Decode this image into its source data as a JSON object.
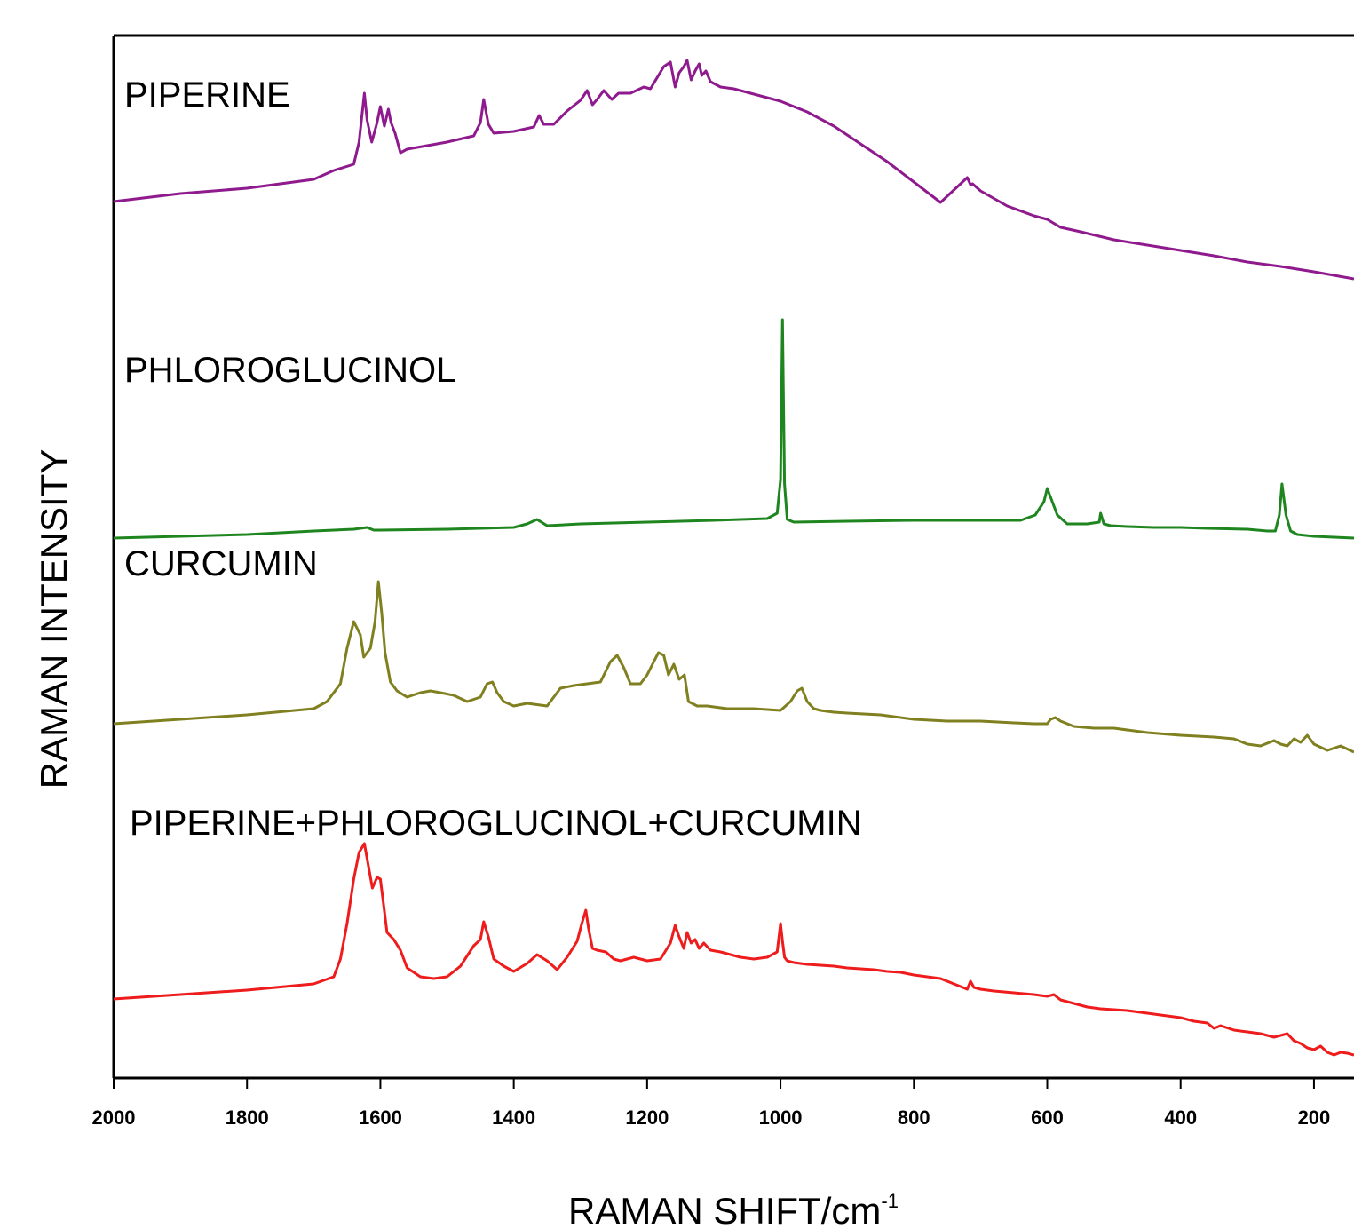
{
  "chart_data": {
    "type": "line",
    "title": "",
    "xlabel": "RAMAN SHIFT/cm",
    "xlabel_superscript": "-1",
    "ylabel": "RAMAN INTENSITY",
    "xlim": [
      2000,
      140
    ],
    "x_reversed": true,
    "y_ticks_shown": false,
    "grid": false,
    "legend": "none (series labelled inline above each trace)",
    "xticks": [
      2000,
      1800,
      1600,
      1400,
      1200,
      1000,
      800,
      600,
      400,
      200
    ],
    "xtick_labels": [
      "2000",
      "1800",
      "1600",
      "1400",
      "1200",
      "1000",
      "800",
      "600",
      "400",
      "200"
    ],
    "series": [
      {
        "name": "PIPERINE",
        "color": "#8e1a8e",
        "x": [
          2000,
          1900,
          1800,
          1700,
          1670,
          1640,
          1632,
          1624,
          1620,
          1613,
          1605,
          1600,
          1594,
          1588,
          1584,
          1578,
          1570,
          1560,
          1500,
          1460,
          1450,
          1445,
          1438,
          1430,
          1400,
          1370,
          1362,
          1355,
          1340,
          1320,
          1300,
          1290,
          1282,
          1275,
          1265,
          1253,
          1243,
          1225,
          1205,
          1195,
          1175,
          1165,
          1158,
          1152,
          1145,
          1140,
          1134,
          1128,
          1122,
          1118,
          1112,
          1105,
          1090,
          1070,
          1040,
          1000,
          960,
          920,
          880,
          840,
          800,
          760,
          720,
          715,
          712,
          700,
          660,
          620,
          600,
          580,
          550,
          500,
          450,
          400,
          350,
          300,
          250,
          200,
          140
        ],
        "y": [
          227,
          218,
          212,
          202,
          192,
          185,
          160,
          105,
          135,
          160,
          138,
          120,
          142,
          123,
          138,
          150,
          172,
          168,
          160,
          153,
          138,
          112,
          140,
          150,
          148,
          143,
          130,
          140,
          140,
          125,
          113,
          102,
          118,
          112,
          102,
          112,
          105,
          105,
          98,
          100,
          75,
          70,
          98,
          82,
          75,
          68,
          90,
          80,
          72,
          85,
          80,
          92,
          98,
          100,
          106,
          114,
          126,
          142,
          162,
          182,
          205,
          228,
          200,
          208,
          207,
          215,
          232,
          243,
          247,
          256,
          261,
          270,
          276,
          282,
          288,
          295,
          300,
          306,
          314
        ]
      },
      {
        "name": "PHLOROGLUCINOL",
        "color": "#1f861f",
        "x": [
          2000,
          1900,
          1800,
          1700,
          1640,
          1620,
          1610,
          1600,
          1500,
          1400,
          1380,
          1365,
          1350,
          1300,
          1200,
          1100,
          1020,
          1005,
          1000,
          997,
          994,
          990,
          980,
          900,
          800,
          700,
          640,
          618,
          605,
          600,
          595,
          585,
          570,
          540,
          522,
          520,
          515,
          505,
          480,
          440,
          400,
          360,
          300,
          270,
          258,
          252,
          248,
          242,
          235,
          225,
          200,
          140
        ],
        "y": [
          606,
          604,
          602,
          598,
          596,
          594,
          597,
          597,
          596,
          594,
          590,
          585,
          592,
          590,
          588,
          586,
          584,
          578,
          540,
          360,
          545,
          585,
          588,
          587,
          586,
          586,
          586,
          580,
          565,
          550,
          560,
          580,
          590,
          590,
          588,
          578,
          590,
          592,
          593,
          594,
          594,
          595,
          596,
          598,
          598,
          580,
          545,
          580,
          598,
          602,
          604,
          606
        ]
      },
      {
        "name": "CURCUMIN",
        "color": "#808020",
        "x": [
          2000,
          1900,
          1800,
          1700,
          1680,
          1660,
          1650,
          1640,
          1630,
          1625,
          1615,
          1608,
          1603,
          1598,
          1593,
          1585,
          1575,
          1560,
          1540,
          1525,
          1510,
          1490,
          1470,
          1450,
          1440,
          1432,
          1425,
          1415,
          1400,
          1380,
          1350,
          1330,
          1310,
          1290,
          1270,
          1255,
          1245,
          1235,
          1225,
          1210,
          1200,
          1190,
          1183,
          1175,
          1168,
          1160,
          1152,
          1144,
          1138,
          1125,
          1110,
          1080,
          1040,
          1000,
          985,
          975,
          968,
          960,
          950,
          940,
          920,
          900,
          850,
          800,
          750,
          700,
          650,
          620,
          600,
          595,
          588,
          580,
          560,
          530,
          500,
          450,
          400,
          350,
          320,
          300,
          280,
          260,
          250,
          240,
          230,
          220,
          210,
          200,
          180,
          160,
          140
        ],
        "y": [
          815,
          810,
          805,
          798,
          790,
          770,
          730,
          700,
          715,
          740,
          730,
          700,
          655,
          690,
          735,
          768,
          778,
          785,
          780,
          778,
          780,
          783,
          790,
          785,
          770,
          768,
          780,
          790,
          795,
          792,
          795,
          775,
          772,
          770,
          768,
          745,
          738,
          752,
          770,
          770,
          760,
          745,
          735,
          738,
          760,
          748,
          765,
          760,
          790,
          795,
          795,
          798,
          798,
          800,
          790,
          778,
          775,
          790,
          798,
          800,
          802,
          803,
          805,
          810,
          812,
          812,
          814,
          815,
          815,
          810,
          808,
          812,
          818,
          820,
          820,
          825,
          828,
          830,
          832,
          838,
          840,
          834,
          838,
          840,
          832,
          836,
          828,
          838,
          845,
          840,
          847
        ]
      },
      {
        "name": "PIPERINE+PHLOROGLUCINOL+CURCUMIN",
        "color": "#ee1c1c",
        "x": [
          2000,
          1900,
          1800,
          1700,
          1670,
          1660,
          1650,
          1640,
          1632,
          1624,
          1618,
          1612,
          1605,
          1600,
          1595,
          1590,
          1580,
          1570,
          1560,
          1540,
          1520,
          1500,
          1480,
          1460,
          1450,
          1445,
          1438,
          1430,
          1415,
          1400,
          1380,
          1365,
          1350,
          1335,
          1320,
          1305,
          1298,
          1292,
          1288,
          1282,
          1275,
          1262,
          1250,
          1240,
          1220,
          1200,
          1180,
          1165,
          1158,
          1152,
          1145,
          1140,
          1134,
          1128,
          1122,
          1115,
          1105,
          1090,
          1060,
          1040,
          1020,
          1005,
          1000,
          997,
          994,
          990,
          980,
          960,
          940,
          920,
          900,
          880,
          860,
          840,
          820,
          800,
          780,
          760,
          740,
          720,
          715,
          710,
          700,
          680,
          650,
          620,
          600,
          590,
          580,
          560,
          540,
          520,
          500,
          480,
          460,
          440,
          420,
          400,
          380,
          360,
          350,
          340,
          320,
          300,
          280,
          260,
          250,
          240,
          230,
          220,
          210,
          200,
          190,
          180,
          170,
          160,
          150,
          140
        ],
        "y": [
          1125,
          1120,
          1115,
          1108,
          1100,
          1080,
          1040,
          990,
          960,
          950,
          975,
          1000,
          988,
          990,
          1020,
          1050,
          1058,
          1070,
          1090,
          1100,
          1102,
          1100,
          1088,
          1065,
          1058,
          1038,
          1055,
          1080,
          1088,
          1094,
          1085,
          1075,
          1082,
          1092,
          1078,
          1060,
          1040,
          1025,
          1045,
          1068,
          1070,
          1072,
          1080,
          1082,
          1078,
          1082,
          1080,
          1062,
          1042,
          1055,
          1068,
          1050,
          1062,
          1058,
          1068,
          1062,
          1070,
          1072,
          1078,
          1080,
          1078,
          1072,
          1040,
          1060,
          1078,
          1082,
          1084,
          1086,
          1087,
          1088,
          1090,
          1091,
          1092,
          1094,
          1095,
          1098,
          1100,
          1102,
          1108,
          1114,
          1105,
          1112,
          1114,
          1116,
          1118,
          1120,
          1122,
          1120,
          1126,
          1130,
          1134,
          1136,
          1137,
          1138,
          1140,
          1142,
          1144,
          1146,
          1150,
          1152,
          1158,
          1155,
          1160,
          1162,
          1164,
          1168,
          1166,
          1164,
          1172,
          1175,
          1180,
          1182,
          1178,
          1185,
          1188,
          1185,
          1186,
          1188
        ]
      }
    ]
  }
}
